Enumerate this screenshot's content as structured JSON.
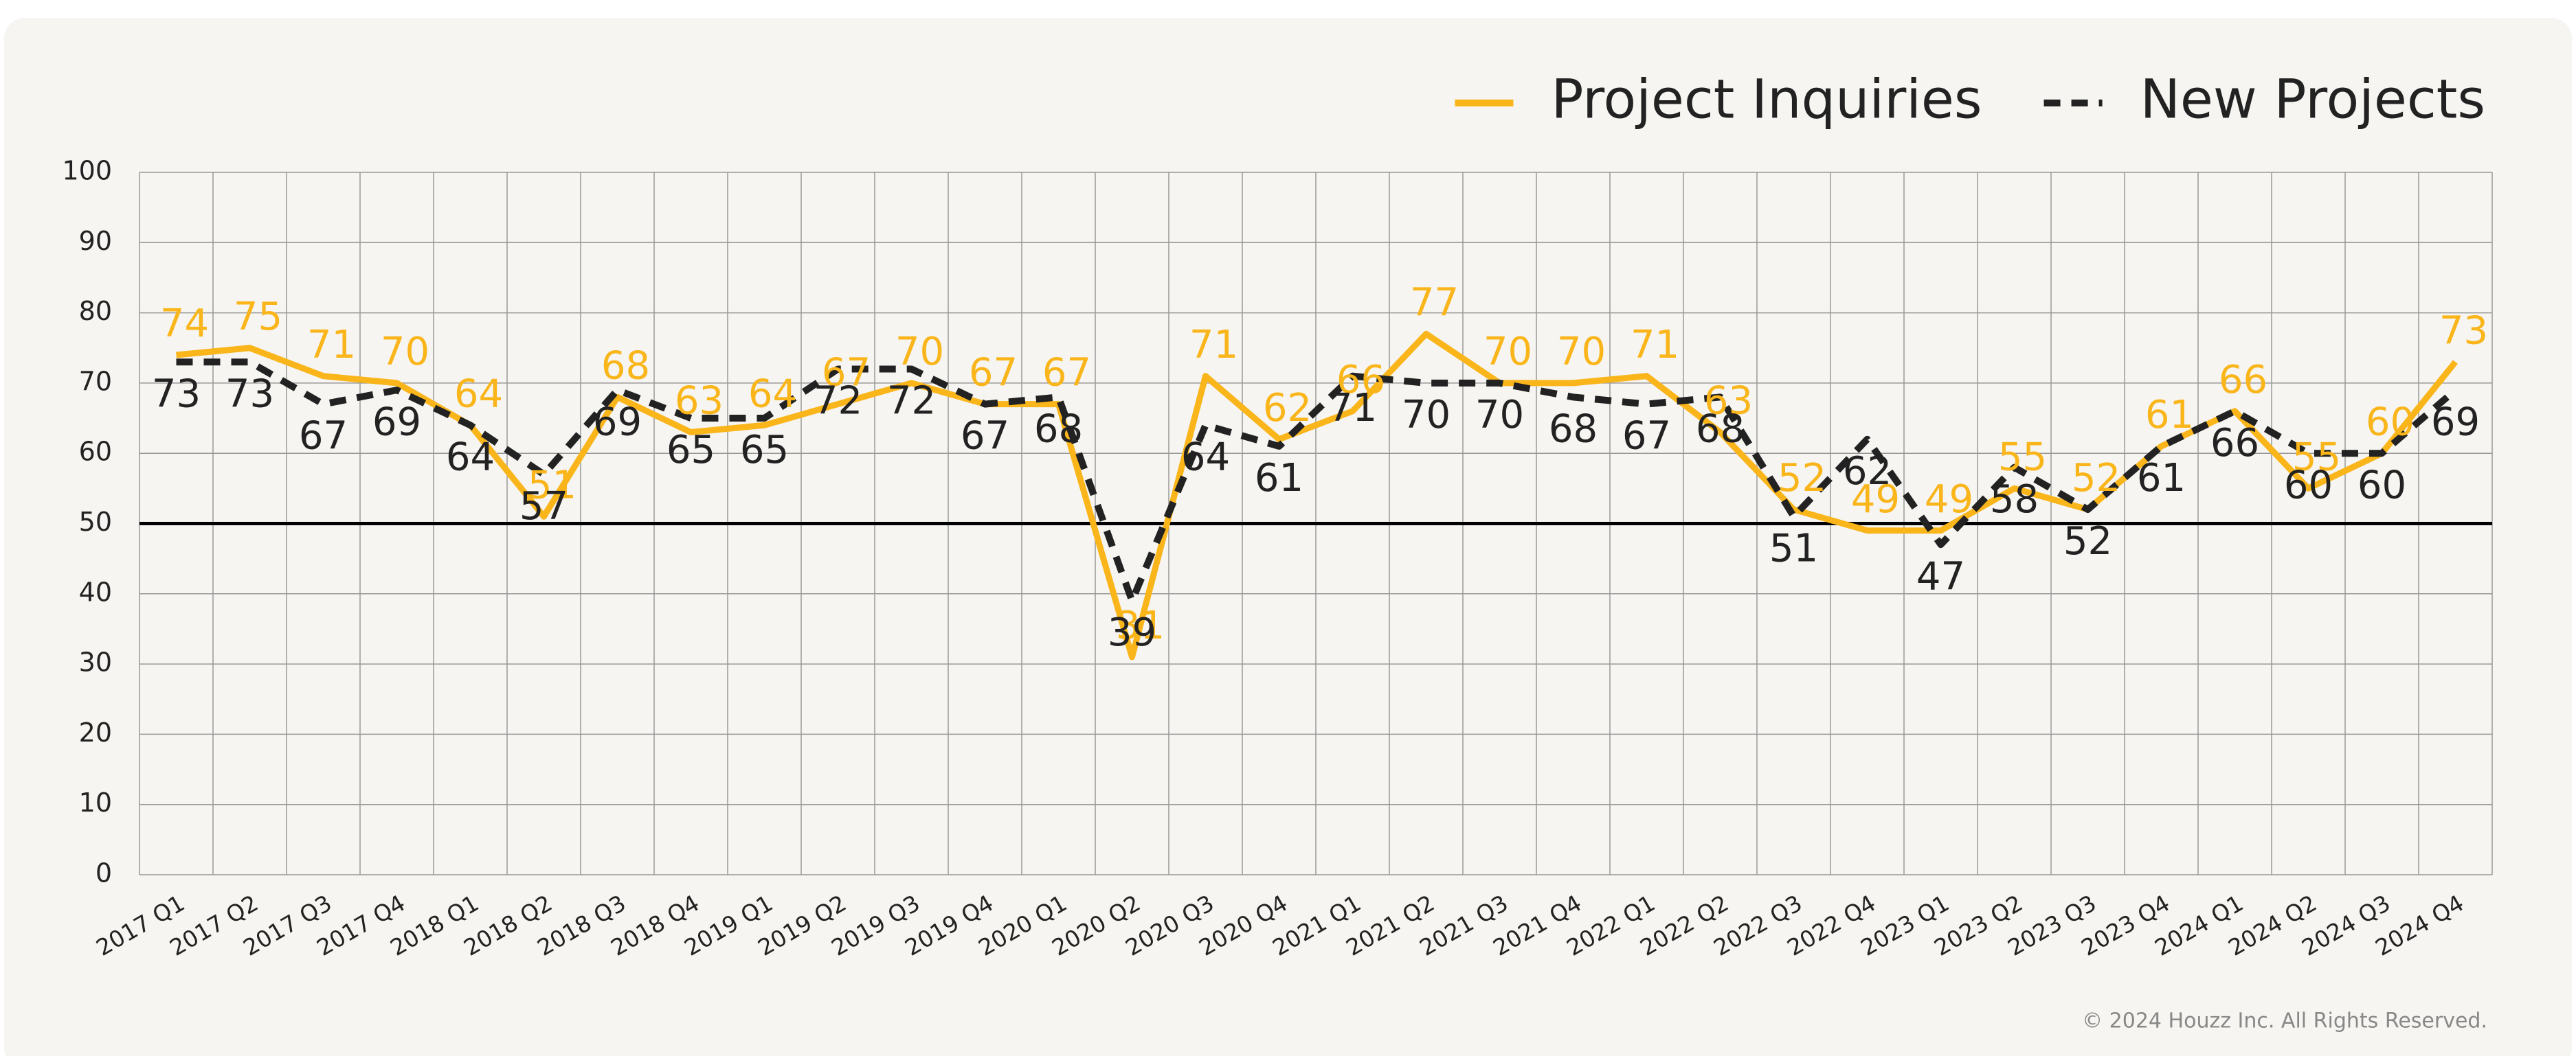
{
  "chart_data": {
    "type": "line",
    "categories": [
      "2017 Q1",
      "2017 Q2",
      "2017 Q3",
      "2017 Q4",
      "2018 Q1",
      "2018 Q2",
      "2018 Q3",
      "2018 Q4",
      "2019 Q1",
      "2019 Q2",
      "2019 Q3",
      "2019 Q4",
      "2020 Q1",
      "2020 Q2",
      "2020 Q3",
      "2020 Q4",
      "2021 Q1",
      "2021 Q2",
      "2021 Q3",
      "2021 Q4",
      "2022 Q1",
      "2022 Q2",
      "2022 Q3",
      "2022 Q4",
      "2023 Q1",
      "2023 Q2",
      "2023 Q3",
      "2023 Q4",
      "2024 Q1",
      "2024 Q2",
      "2024 Q3",
      "2024 Q4"
    ],
    "series": [
      {
        "name": "Project Inquiries",
        "color": "#f9b51a",
        "dash": false,
        "values": [
          74,
          75,
          71,
          70,
          64,
          51,
          68,
          63,
          64,
          67,
          70,
          67,
          67,
          31,
          71,
          62,
          66,
          77,
          70,
          70,
          71,
          63,
          52,
          49,
          49,
          55,
          52,
          61,
          66,
          55,
          60,
          73
        ]
      },
      {
        "name": "New Projects",
        "color": "#222222",
        "dash": true,
        "values": [
          73,
          73,
          67,
          69,
          64,
          57,
          69,
          65,
          65,
          72,
          72,
          67,
          68,
          39,
          64,
          61,
          71,
          70,
          70,
          68,
          67,
          68,
          51,
          62,
          47,
          58,
          52,
          61,
          66,
          60,
          60,
          69
        ]
      }
    ],
    "ylim": [
      0,
      100
    ],
    "yticks": [
      0,
      10,
      20,
      30,
      40,
      50,
      60,
      70,
      80,
      90,
      100
    ],
    "grid": true,
    "reference_line": 50,
    "legend": "top-right",
    "footnote": "© 2024 Houzz Inc. All Rights Reserved."
  }
}
